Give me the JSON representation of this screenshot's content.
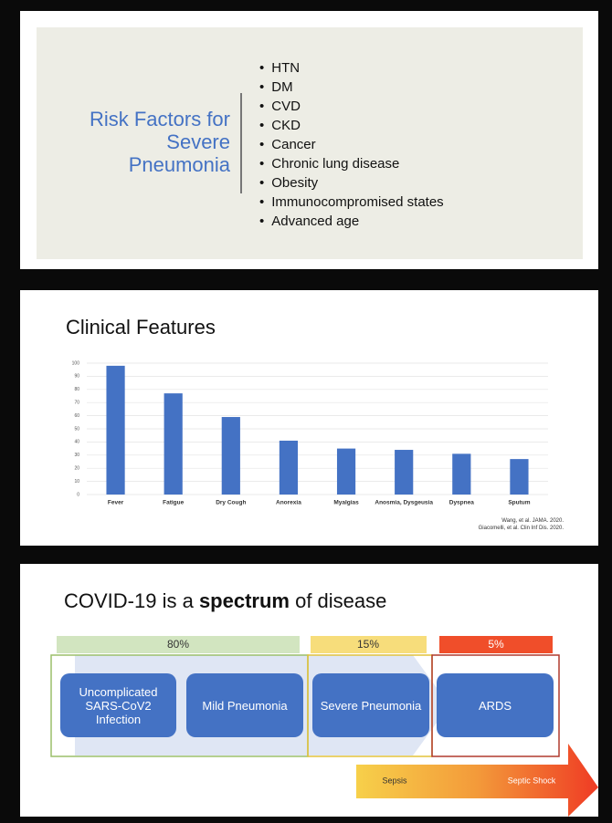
{
  "slide1": {
    "title": "Risk Factors for Severe Pneumonia",
    "items": [
      "HTN",
      "DM",
      "CVD",
      "CKD",
      "Cancer",
      "Chronic lung disease",
      "Obesity",
      "Immunocompromised states",
      "Advanced age"
    ]
  },
  "slide2": {
    "title": "Clinical Features",
    "chart_data": {
      "type": "bar",
      "categories": [
        "Fever",
        "Fatigue",
        "Dry Cough",
        "Anorexia",
        "Myalgias",
        "Anosmia, Dysgeusia",
        "Dyspnea",
        "Sputum"
      ],
      "values": [
        98,
        77,
        59,
        41,
        35,
        34,
        31,
        27
      ],
      "color": "#4472c4",
      "ylim": [
        0,
        100
      ],
      "yticks": [
        0,
        10,
        20,
        30,
        40,
        50,
        60,
        70,
        80,
        90,
        100
      ],
      "grid": true
    },
    "citations": [
      "Wang, et al. JAMA. 2020.",
      "Giacomelli, et al. Clin Inf Dis. 2020."
    ]
  },
  "slide3": {
    "title": [
      "COVID-19 is a ",
      "spectrum",
      " of disease"
    ],
    "percentages": [
      "80%",
      "15%",
      "5%"
    ],
    "stages": [
      "Uncomplicated SARS-CoV2 Infection",
      "Mild Pneumonia",
      "Severe Pneumonia",
      "ARDS"
    ],
    "arrow": [
      "Sepsis",
      "Septic Shock"
    ]
  }
}
